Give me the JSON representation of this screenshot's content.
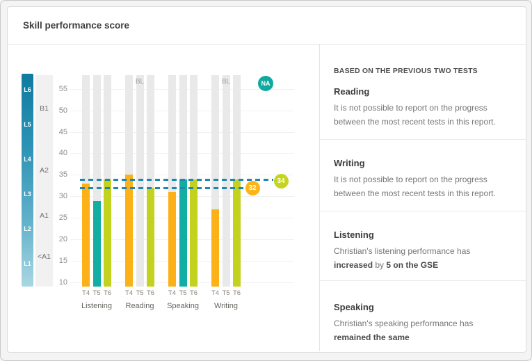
{
  "card": {
    "title": "Skill performance score"
  },
  "chart_data": {
    "type": "bar",
    "title": "Skill performance score",
    "ylim": [
      10,
      55
    ],
    "yticks": [
      55,
      50,
      45,
      40,
      35,
      30,
      25,
      20,
      15,
      10
    ],
    "grid": true,
    "groups": [
      "Listening",
      "Reading",
      "Speaking",
      "Writing"
    ],
    "tests": [
      "T4",
      "T5",
      "T6"
    ],
    "series": [
      {
        "name": "T4",
        "color": "#fbb117",
        "values": [
          33,
          35,
          31,
          27
        ]
      },
      {
        "name": "T5",
        "color": "#12ada3",
        "values": [
          29,
          "BL",
          34,
          "BL"
        ]
      },
      {
        "name": "T6",
        "color": "#c2d21f",
        "values": [
          34,
          32,
          34,
          34
        ]
      }
    ],
    "baseline_label": "BL",
    "na_badge": {
      "label": "NA",
      "color": "#0fa9a0"
    },
    "reference_lines": [
      {
        "value": 34,
        "line_color": "#2187ae",
        "badge_label": "34",
        "badge_color": "#c6d320"
      },
      {
        "value": 32,
        "line_color": "#2187ae",
        "badge_label": "32",
        "badge_color": "#fdb417"
      }
    ],
    "gse_levels": [
      "L6",
      "L5",
      "L4",
      "L3",
      "L2",
      "L1"
    ],
    "cefr_bands": [
      {
        "label": "B1",
        "gse_mid": 50.5
      },
      {
        "label": "A2",
        "gse_mid": 36
      },
      {
        "label": "A1",
        "gse_mid": 25.5
      },
      {
        "label": "<A1",
        "gse_mid": 16
      }
    ]
  },
  "panel": {
    "header": "BASED ON THE PREVIOUS TWO TESTS",
    "sections": [
      {
        "title": "Reading",
        "segments": [
          {
            "text": "It is not possible to report on the progress between the most recent tests in this report.",
            "bold": false
          }
        ]
      },
      {
        "title": "Writing",
        "segments": [
          {
            "text": "It is not possible to report on the progress between the most recent tests in this report.",
            "bold": false
          }
        ]
      },
      {
        "title": "Listening",
        "segments": [
          {
            "text": "Christian's listening performance has ",
            "bold": false
          },
          {
            "text": "increased",
            "bold": true
          },
          {
            "text": " by ",
            "bold": false
          },
          {
            "text": "5 on the GSE",
            "bold": true
          }
        ]
      },
      {
        "title": "Speaking",
        "segments": [
          {
            "text": "Christian's speaking performance has ",
            "bold": false
          },
          {
            "text": "remained the same",
            "bold": true
          }
        ]
      }
    ]
  }
}
